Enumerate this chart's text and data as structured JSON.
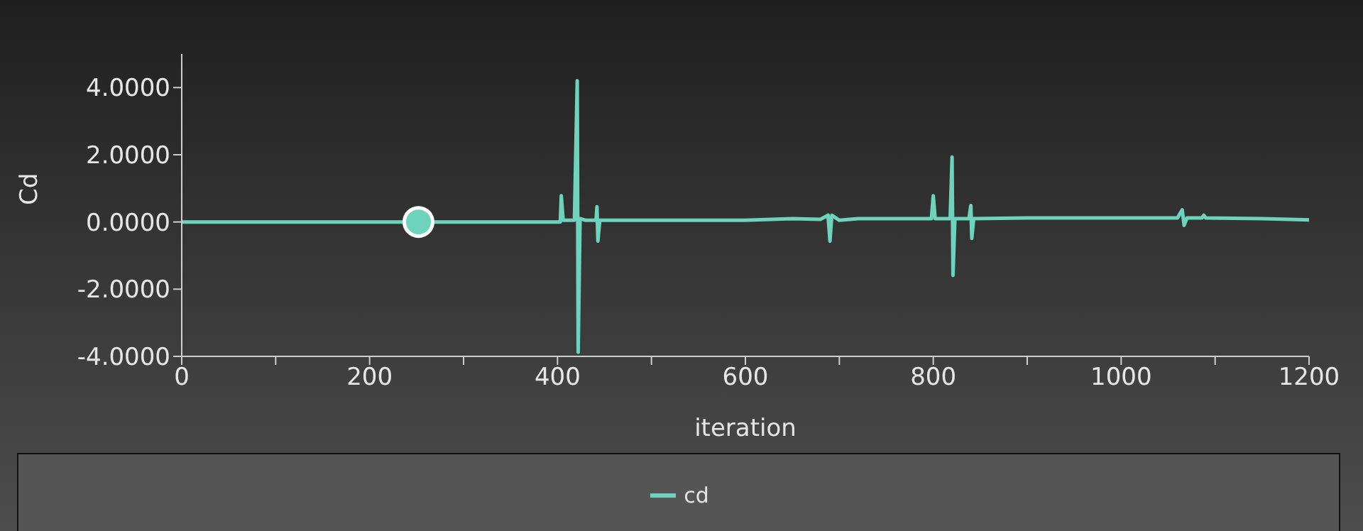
{
  "chart_data": {
    "type": "line",
    "xlabel": "iteration",
    "ylabel": "Cd",
    "xlim": [
      0,
      1200
    ],
    "ylim": [
      -4,
      5
    ],
    "xticks": [
      0,
      {
        "value": 100,
        "label": null
      },
      200,
      {
        "value": 300,
        "label": null
      },
      400,
      {
        "value": 500,
        "label": null
      },
      600,
      {
        "value": 700,
        "label": null
      },
      800,
      {
        "value": 900,
        "label": null
      },
      1000,
      {
        "value": 1100,
        "label": null
      },
      1200
    ],
    "yticks": [
      {
        "value": -4,
        "label": "-4.0000"
      },
      {
        "value": -2,
        "label": "-2.0000"
      },
      {
        "value": 0,
        "label": "0.0000"
      },
      {
        "value": 2,
        "label": "2.0000"
      },
      {
        "value": 4,
        "label": "4.0000"
      }
    ],
    "legend": "bottom",
    "line_style": "solid",
    "series": [
      {
        "name": "cd",
        "marker": "none",
        "color": "#6dd3bb",
        "x": [
          0,
          100,
          200,
          300,
          400,
          403,
          404,
          406,
          418,
          421,
          422,
          424,
          430,
          441,
          442,
          443,
          445,
          500,
          600,
          650,
          680,
          688,
          690,
          692,
          700,
          720,
          790,
          798,
          800,
          802,
          818,
          820,
          821,
          823,
          838,
          840,
          841,
          843,
          900,
          1000,
          1060,
          1065,
          1067,
          1070,
          1086,
          1088,
          1090,
          1150,
          1200
        ],
        "values": [
          0,
          0,
          0,
          0,
          0,
          0,
          0.78,
          0.05,
          0.05,
          4.2,
          -3.88,
          0.1,
          0.05,
          0.05,
          0.45,
          -0.57,
          0.05,
          0.05,
          0.05,
          0.1,
          0.08,
          0.2,
          -0.57,
          0.2,
          0.05,
          0.1,
          0.1,
          0.1,
          0.78,
          0.1,
          0.1,
          1.93,
          -1.59,
          0.1,
          0.1,
          0.49,
          -0.49,
          0.1,
          0.12,
          0.12,
          0.12,
          0.36,
          -0.1,
          0.12,
          0.12,
          0.2,
          0.12,
          0.1,
          0.06
        ]
      },
      {
        "type": "scatter",
        "marker": "circle",
        "color": "#6dd3bb",
        "x": [
          252
        ],
        "values": [
          0
        ]
      }
    ]
  }
}
